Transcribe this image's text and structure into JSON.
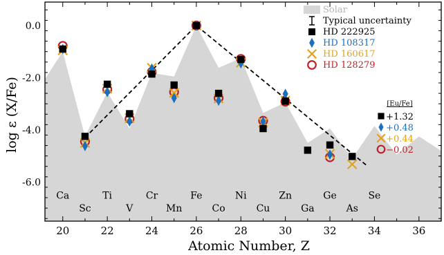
{
  "chart_data": {
    "type": "scatter",
    "xlabel": "Atomic Number, Z",
    "ylabel": "log ε (X/Fe)",
    "xlim": [
      19.2,
      37.0
    ],
    "ylim": [
      -7.5,
      0.9
    ],
    "xticks": [
      20,
      22,
      24,
      26,
      28,
      30,
      32,
      34,
      36
    ],
    "yticks": [
      0.0,
      -2.0,
      -4.0,
      -6.0
    ],
    "ytick_labels": [
      "0.0",
      "-2.0",
      "-4.0",
      "-6.0"
    ],
    "grid": false,
    "legend_position": "top-right",
    "solar": {
      "name": "Solar",
      "color": "#d6d6d6",
      "x": [
        19.2,
        20,
        21,
        22,
        23,
        24,
        25,
        26,
        27,
        28,
        29,
        30,
        31,
        32,
        33,
        34,
        35,
        36,
        37.0
      ],
      "y": [
        -2.05,
        -1.0,
        -4.25,
        -2.55,
        -3.95,
        -1.82,
        -1.95,
        0.0,
        -1.62,
        -1.25,
        -3.35,
        -2.95,
        -4.5,
        -3.95,
        -5.1,
        -3.85,
        -4.95,
        -4.25,
        -4.8
      ]
    },
    "fit_line": {
      "x": [
        21.0,
        26.0,
        33.7
      ],
      "y": [
        -4.3,
        0.0,
        -5.4
      ],
      "style": "dashed",
      "color": "#000000"
    },
    "uncertainty": {
      "name": "Typical uncertainty"
    },
    "series": [
      {
        "name": "HD 222925",
        "marker": "square",
        "color": "#000000",
        "x": [
          20,
          21,
          22,
          23,
          24,
          25,
          26,
          27,
          28,
          29,
          30,
          31,
          32,
          33
        ],
        "y": [
          -0.9,
          -4.25,
          -2.25,
          -3.38,
          -1.86,
          -2.28,
          0.0,
          -2.6,
          -1.3,
          -3.95,
          -2.9,
          -4.78,
          -4.58,
          -5.02
        ]
      },
      {
        "name": "HD 108317",
        "marker": "diamond",
        "color": "#1b6fbd",
        "x": [
          20,
          21,
          22,
          23,
          24,
          25,
          26,
          27,
          28,
          29,
          30,
          32
        ],
        "y": [
          -0.9,
          -4.62,
          -2.55,
          -3.68,
          -1.65,
          -2.78,
          0.0,
          -2.88,
          -1.45,
          -3.68,
          -2.62,
          -4.95
        ]
      },
      {
        "name": "HD 160617",
        "marker": "x",
        "color": "#e3a21a",
        "x": [
          20,
          21,
          22,
          23,
          24,
          25,
          26,
          27,
          28,
          29,
          30,
          32,
          33
        ],
        "y": [
          -0.95,
          -4.5,
          -2.42,
          -3.55,
          -1.62,
          -2.58,
          0.0,
          -2.8,
          -1.42,
          -3.72,
          -2.88,
          -4.92,
          -5.32
        ]
      },
      {
        "name": "HD 128279",
        "marker": "circle",
        "color": "#bf2128",
        "x": [
          20,
          21,
          22,
          23,
          24,
          25,
          26,
          27,
          28,
          29,
          30,
          32
        ],
        "y": [
          -0.78,
          -4.45,
          -2.45,
          -3.58,
          -1.78,
          -2.55,
          0.0,
          -2.78,
          -1.28,
          -3.65,
          -2.92,
          -5.05
        ]
      }
    ],
    "element_labels": [
      {
        "z": 20,
        "symbol": "Ca",
        "row": "upper"
      },
      {
        "z": 21,
        "symbol": "Sc",
        "row": "lower"
      },
      {
        "z": 22,
        "symbol": "Ti",
        "row": "upper"
      },
      {
        "z": 23,
        "symbol": "V",
        "row": "lower"
      },
      {
        "z": 24,
        "symbol": "Cr",
        "row": "upper"
      },
      {
        "z": 25,
        "symbol": "Mn",
        "row": "lower"
      },
      {
        "z": 26,
        "symbol": "Fe",
        "row": "upper"
      },
      {
        "z": 27,
        "symbol": "Co",
        "row": "lower"
      },
      {
        "z": 28,
        "symbol": "Ni",
        "row": "upper"
      },
      {
        "z": 29,
        "symbol": "Cu",
        "row": "lower"
      },
      {
        "z": 30,
        "symbol": "Zn",
        "row": "upper"
      },
      {
        "z": 31,
        "symbol": "Ga",
        "row": "lower"
      },
      {
        "z": 32,
        "symbol": "Ge",
        "row": "upper"
      },
      {
        "z": 33,
        "symbol": "As",
        "row": "lower"
      },
      {
        "z": 34,
        "symbol": "Se",
        "row": "upper"
      }
    ],
    "eu_fe_key": {
      "header": "[Eu/Fe]",
      "entries": [
        {
          "series": "HD 222925",
          "value": "+1.32"
        },
        {
          "series": "HD 108317",
          "value": "+0.48"
        },
        {
          "series": "HD 160617",
          "value": "+0.44"
        },
        {
          "series": "HD 128279",
          "value": "−0.02"
        }
      ]
    }
  }
}
